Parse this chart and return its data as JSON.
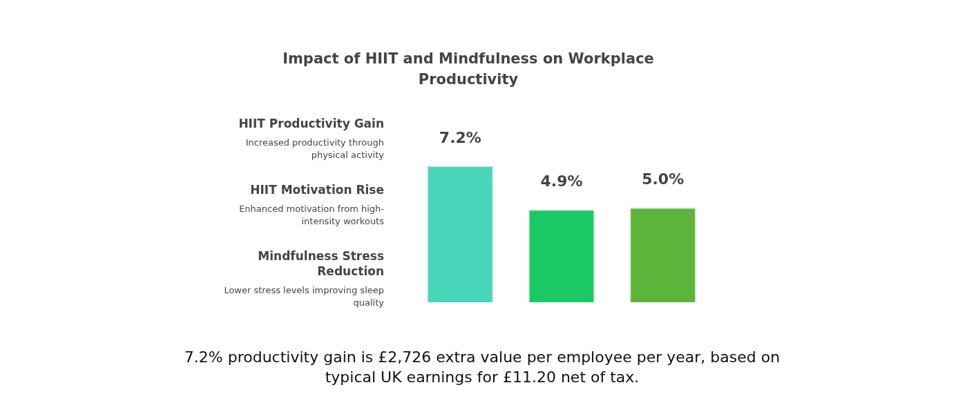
{
  "chart_data": {
    "type": "bar",
    "title": "Impact of HIIT and Mindfulness on Workplace Productivity",
    "categories": [
      null,
      null,
      null
    ],
    "values": [
      7.2,
      4.9,
      5.0
    ],
    "colors": [
      "#47d6b9",
      "#1bc964",
      "#5bb53a"
    ],
    "value_labels": [
      "7.2%",
      "4.9%",
      "5.0%"
    ],
    "tick_labels": false,
    "grid": false,
    "legend": false,
    "annotations": [
      "HIIT Productivity Gain",
      "Increased productivity through physical activity",
      "HIIT Motivation Rise",
      "Enhanced motivation from high-intensity workouts",
      "Mindfulness Stress Reduction",
      "Lower stress levels improving sleep quality",
      "7.2% productivity gain is £2,726 extra value per employee per year, based on typical UK earnings for £11.20 net of tax."
    ]
  }
}
